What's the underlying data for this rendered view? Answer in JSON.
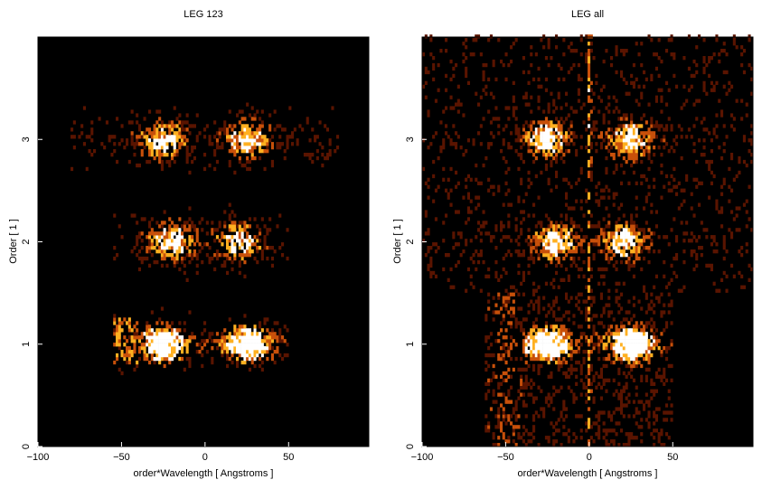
{
  "colors": {
    "background": "#000000",
    "heat_low": "#5a1400",
    "heat_mid": "#c8500a",
    "heat_high": "#ffb020",
    "heat_max": "#ffffff"
  },
  "chart_data": [
    {
      "type": "heatmap",
      "title": "LEG 123",
      "xlabel": "order*Wavelength [ Angstroms ]",
      "ylabel": "Order [ 1 ]",
      "xlim": [
        -100,
        98
      ],
      "ylim": [
        0,
        4
      ],
      "xticks": [
        "−100",
        "−50",
        "0",
        "50"
      ],
      "xtick_values": [
        -100,
        -50,
        0,
        50
      ],
      "yticks": [
        "0",
        "1",
        "2",
        "3"
      ],
      "ytick_values": [
        0,
        1,
        2,
        3
      ],
      "colormap": "heat",
      "features": [
        {
          "order": 1,
          "x_min": -55,
          "x_max": 50,
          "brightest_x": [
            -25,
            25
          ],
          "intensity": "saturated"
        },
        {
          "order": 2,
          "x_min": -55,
          "x_max": 50,
          "brightest_x": [
            -20,
            20
          ],
          "intensity": "moderate"
        },
        {
          "order": 3,
          "x_min": -80,
          "x_max": 80,
          "brightest_x": [
            -25,
            25
          ],
          "intensity": "moderate"
        }
      ]
    },
    {
      "type": "heatmap",
      "title": "LEG all",
      "xlabel": "order*Wavelength [ Angstroms ]",
      "ylabel": "Order [ 1 ]",
      "xlim": [
        -100,
        98
      ],
      "ylim": [
        0,
        4
      ],
      "xticks": [
        "−100",
        "−50",
        "0",
        "50"
      ],
      "xtick_values": [
        -100,
        -50,
        0,
        50
      ],
      "yticks": [
        "0",
        "1",
        "2",
        "3"
      ],
      "ytick_values": [
        0,
        1,
        2,
        3
      ],
      "colormap": "heat",
      "features": [
        {
          "order": 1,
          "x_min": -60,
          "x_max": 50,
          "brightest_x": [
            -25,
            25
          ],
          "intensity": "saturated"
        },
        {
          "order": 2,
          "x_min": -100,
          "x_max": 85,
          "brightest_x": [
            -20,
            20
          ],
          "intensity": "moderate"
        },
        {
          "order": 3,
          "x_min": -100,
          "x_max": 85,
          "brightest_x": [
            -25,
            25
          ],
          "intensity": "moderate"
        }
      ],
      "zero_order_streak_x": 0
    }
  ]
}
